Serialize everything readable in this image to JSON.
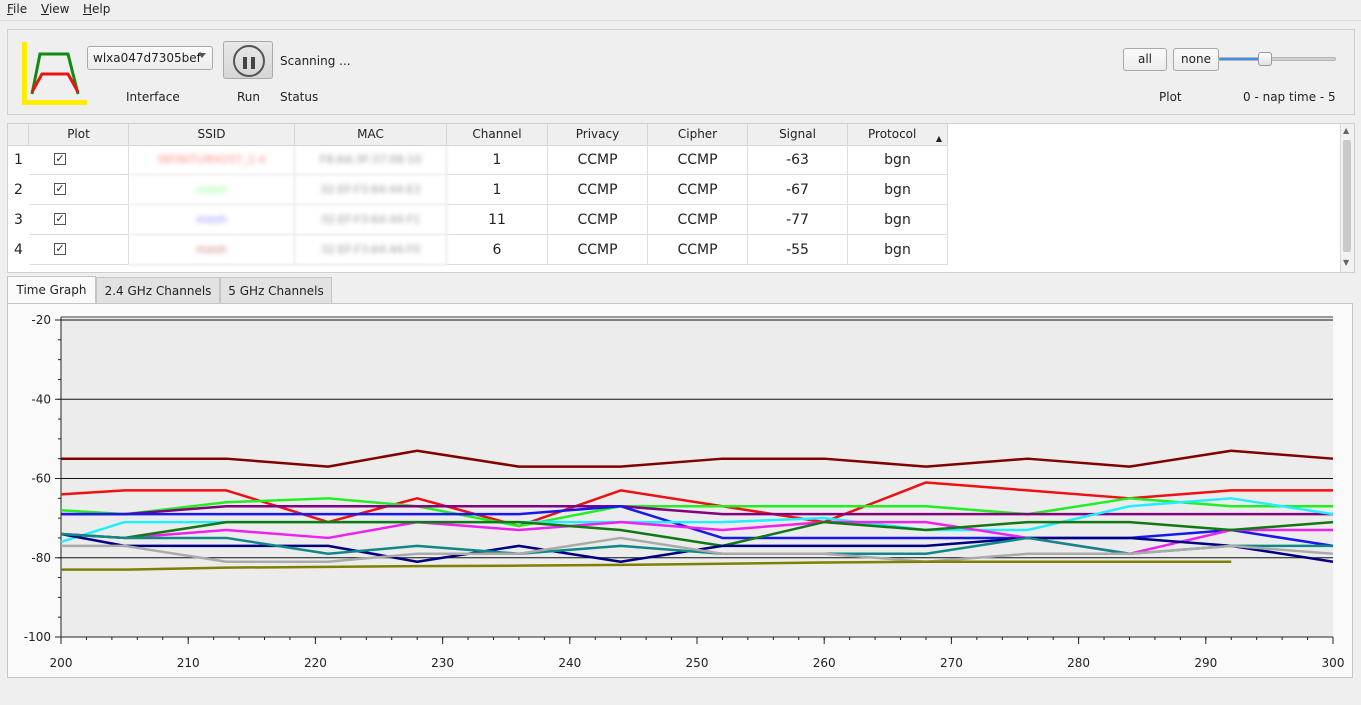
{
  "menu": [
    "File",
    "View",
    "Help"
  ],
  "toolbar": {
    "interface_value": "wlxa047d7305bef",
    "interface_label": "Interface",
    "run_label": "Run",
    "status_value": "Scanning ...",
    "status_label": "Status",
    "all_label": "all",
    "none_label": "none",
    "plot_label": "Plot",
    "nap_label": "0 - nap time - 5",
    "nap_value": 2,
    "nap_max": 5
  },
  "table": {
    "headers": [
      "Plot",
      "SSID",
      "MAC",
      "Channel",
      "Privacy",
      "Cipher",
      "Signal",
      "Protocol"
    ],
    "rows": [
      {
        "n": "1",
        "ssid": "INFINITUM4207_2.4",
        "ssid_color": "#ff8080",
        "mac": "F8:AA:3F:37:08:10",
        "channel": "1",
        "privacy": "CCMP",
        "cipher": "CCMP",
        "signal": "-63",
        "protocol": "bgn"
      },
      {
        "n": "2",
        "ssid": "mesh",
        "ssid_color": "#7cff7c",
        "mac": "32:EF:F3:64:44:E3",
        "channel": "1",
        "privacy": "CCMP",
        "cipher": "CCMP",
        "signal": "-67",
        "protocol": "bgn"
      },
      {
        "n": "3",
        "ssid": "mesh",
        "ssid_color": "#8080ff",
        "mac": "32:EF:F3:64:44:F1",
        "channel": "11",
        "privacy": "CCMP",
        "cipher": "CCMP",
        "signal": "-77",
        "protocol": "bgn"
      },
      {
        "n": "4",
        "ssid": "mesh",
        "ssid_color": "#c07070",
        "mac": "32:EF:F3:64:44:F0",
        "channel": "6",
        "privacy": "CCMP",
        "cipher": "CCMP",
        "signal": "-55",
        "protocol": "bgn"
      }
    ]
  },
  "tabs": [
    "Time Graph",
    "2.4 GHz Channels",
    "5 GHz Channels"
  ],
  "chart_data": {
    "type": "line",
    "xlim": [
      200,
      300
    ],
    "ylim": [
      -100,
      -20
    ],
    "xticks": [
      "200",
      "210",
      "220",
      "230",
      "240",
      "250",
      "260",
      "270",
      "280",
      "290",
      "300"
    ],
    "yticks": [
      "-20",
      "-40",
      "-60",
      "-80",
      "-100"
    ],
    "grid": "horizontal major lines",
    "series": [
      {
        "color": "#800000",
        "x": [
          200,
          205,
          213,
          221,
          228,
          236,
          244,
          252,
          260,
          268,
          276,
          284,
          292,
          300
        ],
        "y": [
          -55,
          -55,
          -55,
          -57,
          -53,
          -57,
          -57,
          -55,
          -55,
          -57,
          -55,
          -57,
          -53,
          -55
        ]
      },
      {
        "color": "#ee1111",
        "x": [
          200,
          205,
          213,
          221,
          228,
          236,
          244,
          252,
          260,
          268,
          276,
          284,
          292,
          300
        ],
        "y": [
          -64,
          -63,
          -63,
          -71,
          -65,
          -72,
          -63,
          -67,
          -71,
          -61,
          -63,
          -65,
          -63,
          -63
        ]
      },
      {
        "color": "#22ee22",
        "x": [
          200,
          205,
          213,
          221,
          228,
          236,
          244,
          252,
          260,
          268,
          276,
          284,
          292,
          300
        ],
        "y": [
          -68,
          -69,
          -66,
          -65,
          -67,
          -72,
          -67,
          -67,
          -67,
          -67,
          -69,
          -65,
          -67,
          -67
        ]
      },
      {
        "color": "#800080",
        "x": [
          200,
          205,
          213,
          221,
          228,
          236,
          244,
          252,
          260,
          268,
          276,
          284,
          292,
          300
        ],
        "y": [
          -69,
          -69,
          -67,
          -67,
          -67,
          -67,
          -67,
          -69,
          -69,
          -69,
          -69,
          -69,
          -69,
          -69
        ]
      },
      {
        "color": "#1818e8",
        "x": [
          200,
          205,
          213,
          221,
          228,
          236,
          244,
          252,
          260,
          268,
          276,
          284,
          292,
          300
        ],
        "y": [
          -69,
          -69,
          -69,
          -69,
          -69,
          -69,
          -67,
          -75,
          -75,
          -75,
          -75,
          -75,
          -73,
          -77
        ]
      },
      {
        "color": "#22eeff",
        "x": [
          200,
          205,
          213,
          221,
          228,
          236,
          244,
          252,
          260,
          268,
          276,
          284,
          292,
          300
        ],
        "y": [
          -76,
          -71,
          -71,
          -71,
          -71,
          -71,
          -71,
          -71,
          -70,
          -73,
          -73,
          -67,
          -65,
          -69
        ]
      },
      {
        "color": "#ee22ee",
        "x": [
          200,
          205,
          213,
          221,
          228,
          236,
          244,
          252,
          260,
          268,
          276,
          284,
          292,
          300
        ],
        "y": [
          -74,
          -75,
          -73,
          -75,
          -71,
          -73,
          -71,
          -73,
          -71,
          -71,
          -75,
          -79,
          -73,
          -73
        ]
      },
      {
        "color": "#127812",
        "x": [
          200,
          205,
          213,
          221,
          228,
          236,
          244,
          252,
          260,
          268,
          276,
          284,
          292,
          300
        ],
        "y": [
          -74,
          -75,
          -71,
          -71,
          -71,
          -71,
          -73,
          -77,
          -71,
          -73,
          -71,
          -71,
          -73,
          -71
        ]
      },
      {
        "color": "#000080",
        "x": [
          200,
          205,
          213,
          221,
          228,
          236,
          244,
          252,
          260,
          268,
          276,
          284,
          292,
          300
        ],
        "y": [
          -74,
          -77,
          -77,
          -77,
          -81,
          -77,
          -81,
          -77,
          -77,
          -77,
          -75,
          -75,
          -77,
          -81
        ]
      },
      {
        "color": "#118888",
        "x": [
          200,
          205,
          213,
          221,
          228,
          236,
          244,
          252,
          260,
          268,
          276,
          284,
          292,
          300
        ],
        "y": [
          -74,
          -75,
          -75,
          -79,
          -77,
          -79,
          -77,
          -79,
          -79,
          -79,
          -75,
          -79,
          -77,
          -77
        ]
      },
      {
        "color": "#aaaaaa",
        "x": [
          200,
          205,
          213,
          221,
          228,
          236,
          244,
          252,
          260,
          268,
          276,
          284,
          292,
          300
        ],
        "y": [
          -77,
          -77,
          -81,
          -81,
          -79,
          -79,
          -75,
          -79,
          -79,
          -81,
          -79,
          -79,
          -77,
          -79
        ]
      },
      {
        "color": "#808000",
        "x": [
          200,
          205,
          213,
          221,
          228,
          236,
          244,
          252,
          260,
          268,
          276,
          284,
          292
        ],
        "y": [
          -83,
          -83,
          -82.5,
          -82.3,
          -82.1,
          -82,
          -81.8,
          -81.5,
          -81.2,
          -81,
          -81,
          -81,
          -81
        ]
      }
    ]
  }
}
